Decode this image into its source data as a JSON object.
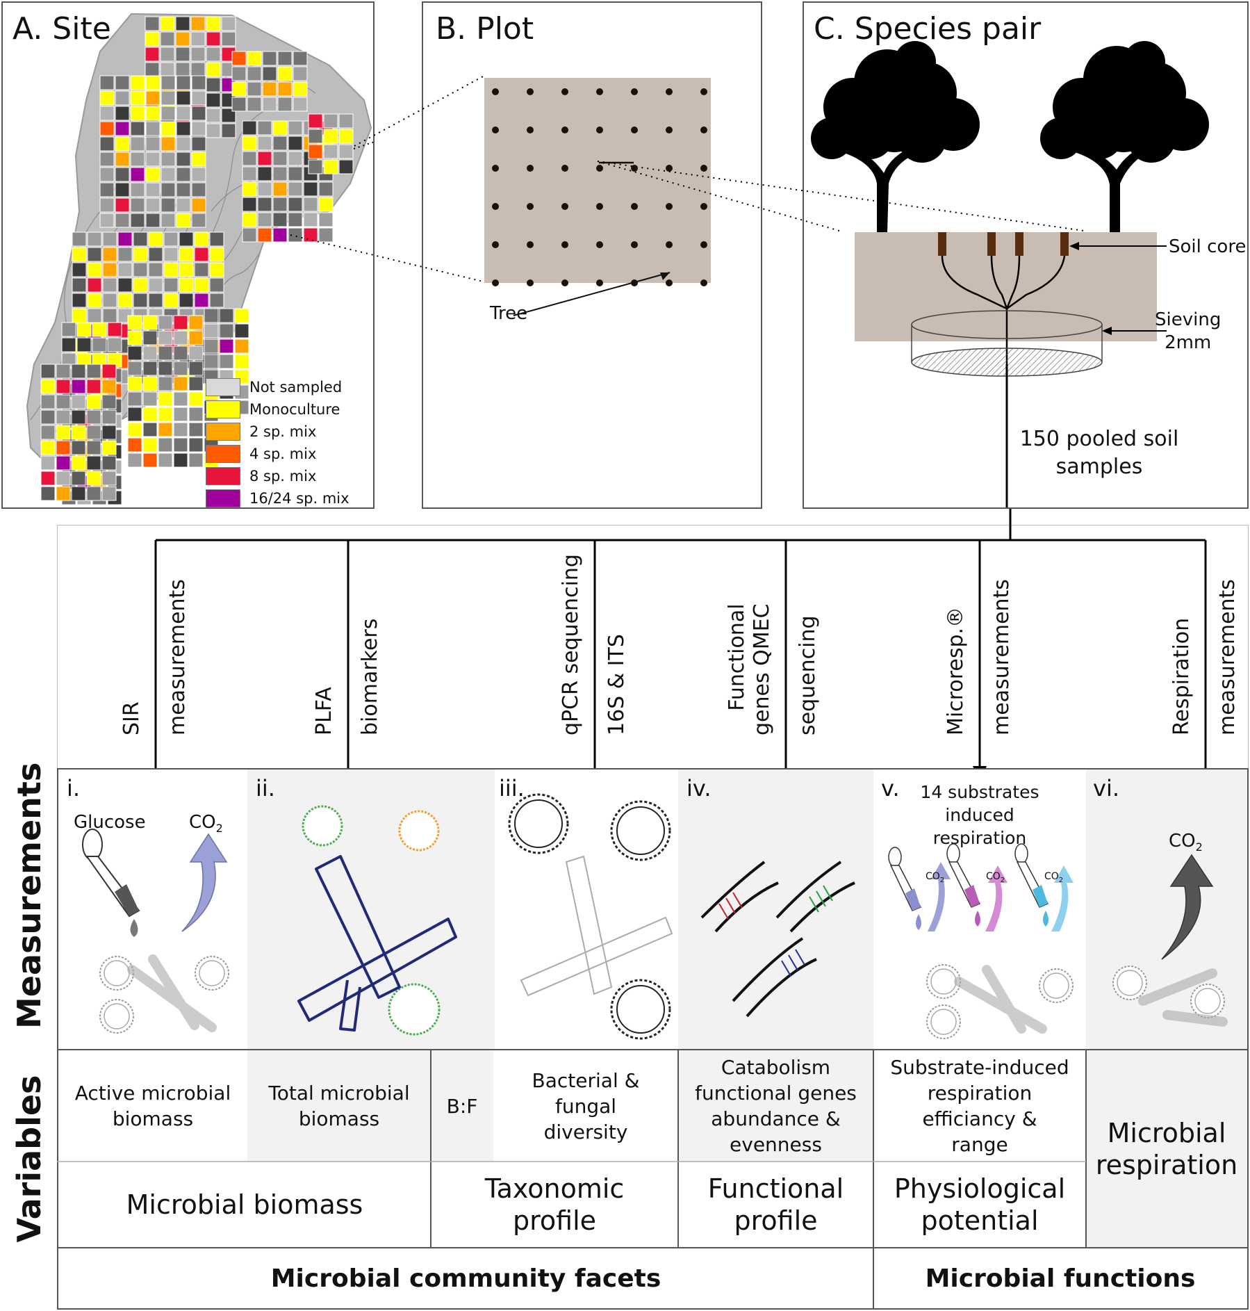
{
  "panels": {
    "site_title": "A. Site",
    "plot_title": "B. Plot",
    "pair_title": "C. Species pair"
  },
  "legend": [
    {
      "label": "Not sampled",
      "color": "#d9d9d9"
    },
    {
      "label": "Monoculture",
      "color": "#ffff00"
    },
    {
      "label": "2 sp. mix",
      "color": "#ffa500"
    },
    {
      "label": "4 sp. mix",
      "color": "#ff5a00"
    },
    {
      "label": "8 sp. mix",
      "color": "#e8143c"
    },
    {
      "label": "16/24 sp. mix",
      "color": "#a0009b"
    }
  ],
  "plot": {
    "tree_label": "Tree"
  },
  "species_pair": {
    "soil_core_label": "Soil core",
    "sieving_label": "Sieving\n2mm",
    "pooled_label": "150 pooled soil\nsamples"
  },
  "methods": [
    {
      "line1": "SIR",
      "line2": "measurements"
    },
    {
      "line1": "PLFA",
      "line2": "biomarkers"
    },
    {
      "line1": "qPCR sequencing",
      "line2": "16S & ITS"
    },
    {
      "line1": "Functional\ngenes QMEC",
      "line2": "sequencing"
    },
    {
      "line1": "Microresp.®",
      "line2": "measurements"
    },
    {
      "line1": "Respiration",
      "line2": "measurements"
    }
  ],
  "measurements": {
    "section_label": "Measurements",
    "numerals": [
      "i.",
      "ii.",
      "iii.",
      "iv.",
      "v.",
      "vi."
    ],
    "glucose_label": "Glucose",
    "co2": "CO",
    "co2_sub": "2",
    "substrates_label": "14 substrates\ninduced\nrespiration"
  },
  "variables": {
    "section_label": "Variables",
    "row1": [
      "Active microbial\nbiomass",
      "Total microbial\nbiomass",
      "B:F",
      "Bacterial &\nfungal\ndiversity",
      "Catabolism\nfunctional genes\nabundance &\nevenness",
      "Substrate-induced\nrespiration\nefficiancy &\nrange"
    ],
    "microbial_respiration": "Microbial\nrespiration",
    "row2": [
      "Microbial biomass",
      "Taxonomic\nprofile",
      "Functional\nprofile",
      "Physiological\npotential"
    ],
    "footer_left": "Microbial community facets",
    "footer_right": "Microbial functions"
  }
}
